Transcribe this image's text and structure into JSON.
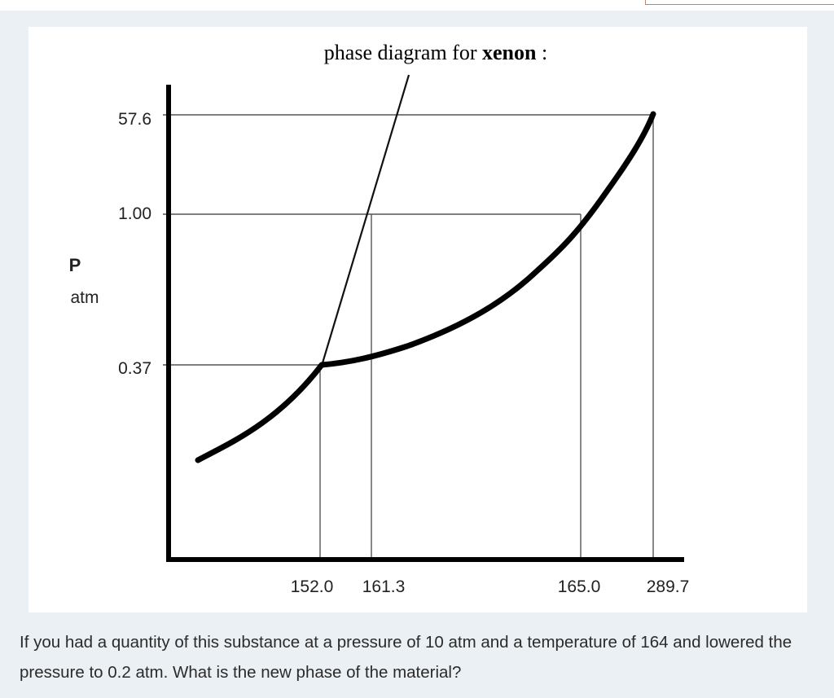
{
  "diagram": {
    "title_plain": "phase diagram for ",
    "title_bold": "xenon",
    "title_tail": " :",
    "y_axis_label_line1": "P",
    "y_axis_label_line2": "atm",
    "y_ticks": [
      "57.6",
      "1.00",
      "0.37"
    ],
    "x_ticks": [
      "152.0",
      "161.3",
      "165.0",
      "289.7"
    ]
  },
  "question": {
    "text": "If you had a quantity of this substance at a pressure of 10 atm and a temperature of 164 and lowered the pressure to 0.2 atm. What is the new phase of the material?"
  }
}
